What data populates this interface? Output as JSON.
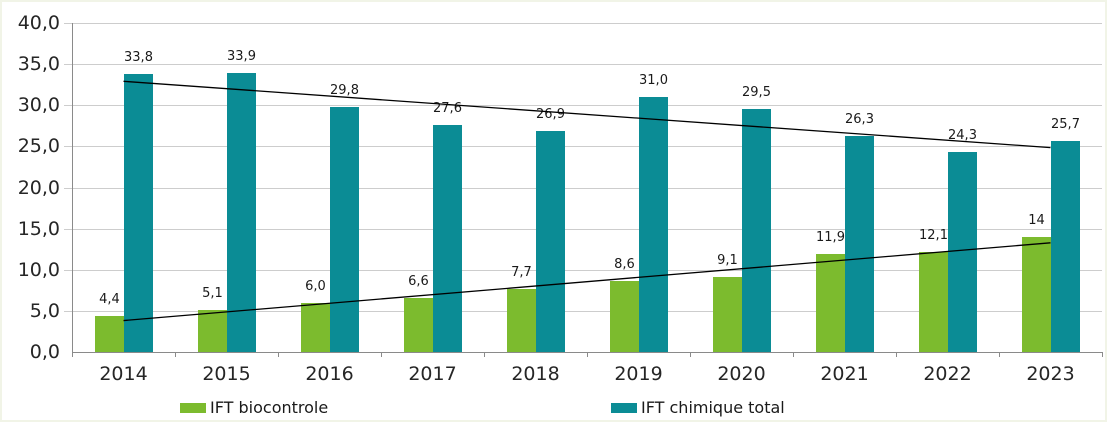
{
  "chart_data": {
    "type": "bar",
    "categories": [
      "2014",
      "2015",
      "2016",
      "2017",
      "2018",
      "2019",
      "2020",
      "2021",
      "2022",
      "2023"
    ],
    "series": [
      {
        "name": "IFT biocontrole",
        "color": "#7cbb2e",
        "values": [
          4.4,
          5.1,
          6.0,
          6.6,
          7.7,
          8.6,
          9.1,
          11.9,
          12.1,
          14
        ],
        "labels": [
          "4,4",
          "5,1",
          "6,0",
          "6,6",
          "7,7",
          "8,6",
          "9,1",
          "11,9",
          "12,1",
          "14"
        ],
        "trendline": true
      },
      {
        "name": "IFT chimique total",
        "color": "#0b8c95",
        "values": [
          33.8,
          33.9,
          29.8,
          27.6,
          26.9,
          31.0,
          29.5,
          26.3,
          24.3,
          25.7
        ],
        "labels": [
          "33,8",
          "33,9",
          "29,8",
          "27,6",
          "26,9",
          "31,0",
          "29,5",
          "26,3",
          "24,3",
          "25,7"
        ],
        "trendline": true
      }
    ],
    "title": "",
    "xlabel": "",
    "ylabel": "",
    "ylim": [
      0,
      40
    ],
    "ytick_step": 5,
    "ytick_labels": [
      "0,0",
      "5,0",
      "10,0",
      "15,0",
      "20,0",
      "25,0",
      "30,0",
      "35,0",
      "40,0"
    ],
    "grid": "horizontal",
    "legend_position": "bottom",
    "trendline_color": "#000000"
  }
}
